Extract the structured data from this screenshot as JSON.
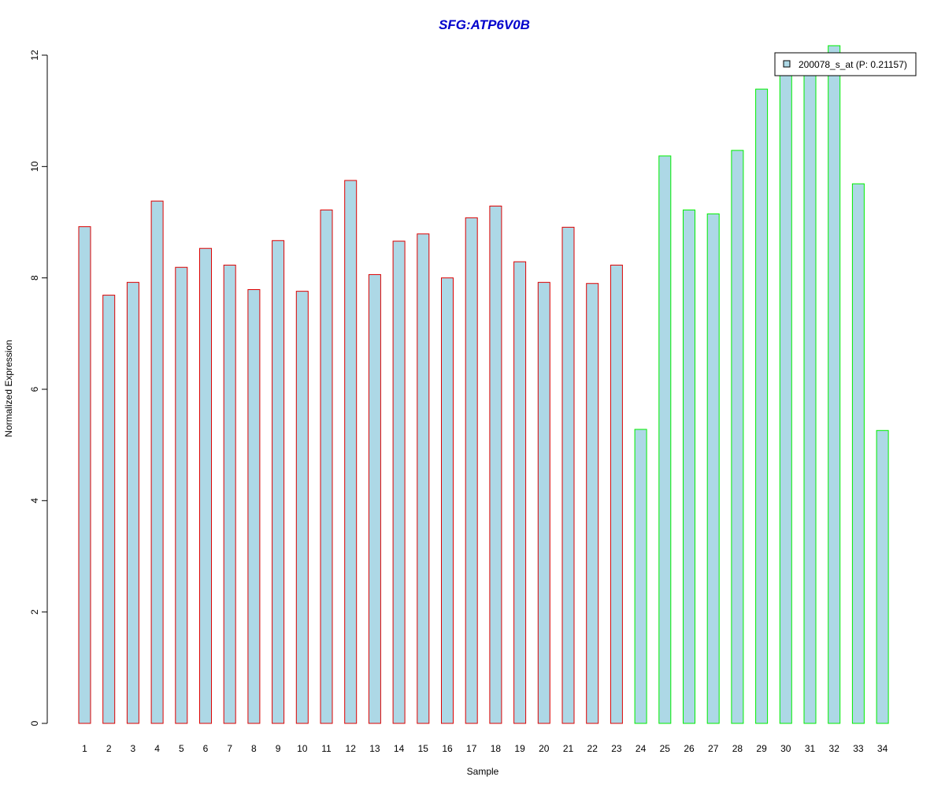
{
  "chart_data": {
    "type": "bar",
    "title": "SFG:ATP6V0B",
    "xlabel": "Sample",
    "ylabel": "Normalized Expression",
    "ylim": [
      0,
      12
    ],
    "yticks": [
      0,
      2,
      4,
      6,
      8,
      10,
      12
    ],
    "categories": [
      "1",
      "2",
      "3",
      "4",
      "5",
      "6",
      "7",
      "8",
      "9",
      "10",
      "11",
      "12",
      "13",
      "14",
      "15",
      "16",
      "17",
      "18",
      "19",
      "20",
      "21",
      "22",
      "23",
      "24",
      "25",
      "26",
      "27",
      "28",
      "29",
      "30",
      "31",
      "32",
      "33",
      "34"
    ],
    "series": [
      {
        "name": "200078_s_at (P: 0.21157)",
        "values": [
          8.92,
          7.69,
          7.92,
          9.38,
          8.19,
          8.53,
          8.23,
          7.79,
          8.67,
          7.76,
          9.22,
          9.75,
          8.06,
          8.66,
          8.79,
          8.0,
          9.08,
          9.29,
          8.29,
          7.92,
          8.91,
          7.9,
          8.23,
          5.28,
          10.19,
          9.22,
          9.15,
          10.29,
          11.39,
          11.77,
          11.83,
          12.17,
          9.69,
          5.26
        ]
      }
    ],
    "bar_fill": "#add8e6",
    "group_border_colors": [
      "#dd0000",
      "#dd0000",
      "#dd0000",
      "#dd0000",
      "#dd0000",
      "#dd0000",
      "#dd0000",
      "#dd0000",
      "#dd0000",
      "#dd0000",
      "#dd0000",
      "#dd0000",
      "#dd0000",
      "#dd0000",
      "#dd0000",
      "#dd0000",
      "#dd0000",
      "#dd0000",
      "#dd0000",
      "#dd0000",
      "#dd0000",
      "#dd0000",
      "#dd0000",
      "#00ee00",
      "#00ee00",
      "#00ee00",
      "#00ee00",
      "#00ee00",
      "#00ee00",
      "#00ee00",
      "#00ee00",
      "#00ee00",
      "#00ee00",
      "#00ee00"
    ],
    "title_color": "#0000cc",
    "legend_position": "top-right",
    "grid": false
  }
}
